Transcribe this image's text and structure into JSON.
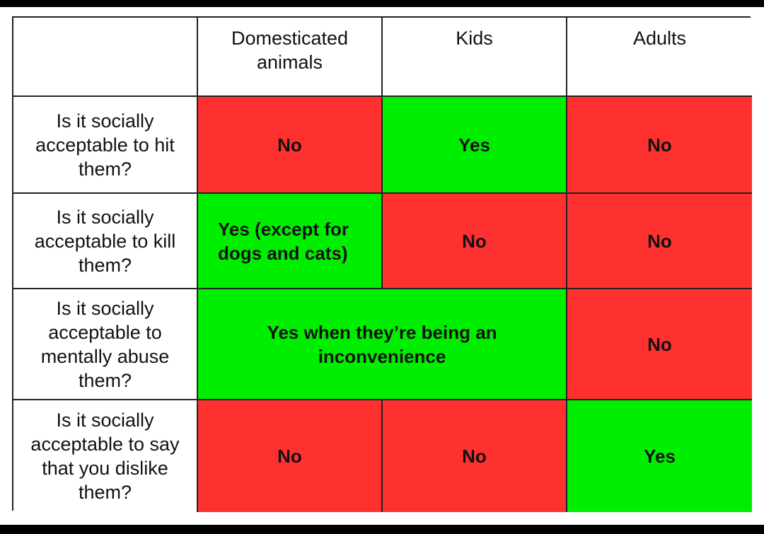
{
  "colors": {
    "yes": "#00ef00",
    "no": "#ff3030",
    "header": "#ffffff",
    "grid_line": "#222222"
  },
  "chart_data": {
    "type": "table",
    "columns": [
      "",
      "Domesticated animals",
      "Kids",
      "Adults"
    ],
    "rows": [
      {
        "question": "Is it socially acceptable to hit them?",
        "cells": [
          {
            "text": "No",
            "status": "no",
            "span": 1
          },
          {
            "text": "Yes",
            "status": "yes",
            "span": 1
          },
          {
            "text": "No",
            "status": "no",
            "span": 1
          }
        ]
      },
      {
        "question": "Is it socially acceptable to kill them?",
        "cells": [
          {
            "text": "Yes (except for dogs and cats)",
            "status": "yes",
            "span": 1,
            "align": "left"
          },
          {
            "text": "No",
            "status": "no",
            "span": 1
          },
          {
            "text": "No",
            "status": "no",
            "span": 1
          }
        ]
      },
      {
        "question": "Is it socially acceptable to mentally abuse them?",
        "cells": [
          {
            "text": "Yes when they’re being an inconvenience",
            "status": "yes",
            "span": 2
          },
          {
            "text": "No",
            "status": "no",
            "span": 1
          }
        ]
      },
      {
        "question": "Is it socially acceptable to say that you dislike them?",
        "cells": [
          {
            "text": "No",
            "status": "no",
            "span": 1
          },
          {
            "text": "No",
            "status": "no",
            "span": 1
          },
          {
            "text": "Yes",
            "status": "yes",
            "span": 1
          }
        ]
      }
    ]
  }
}
